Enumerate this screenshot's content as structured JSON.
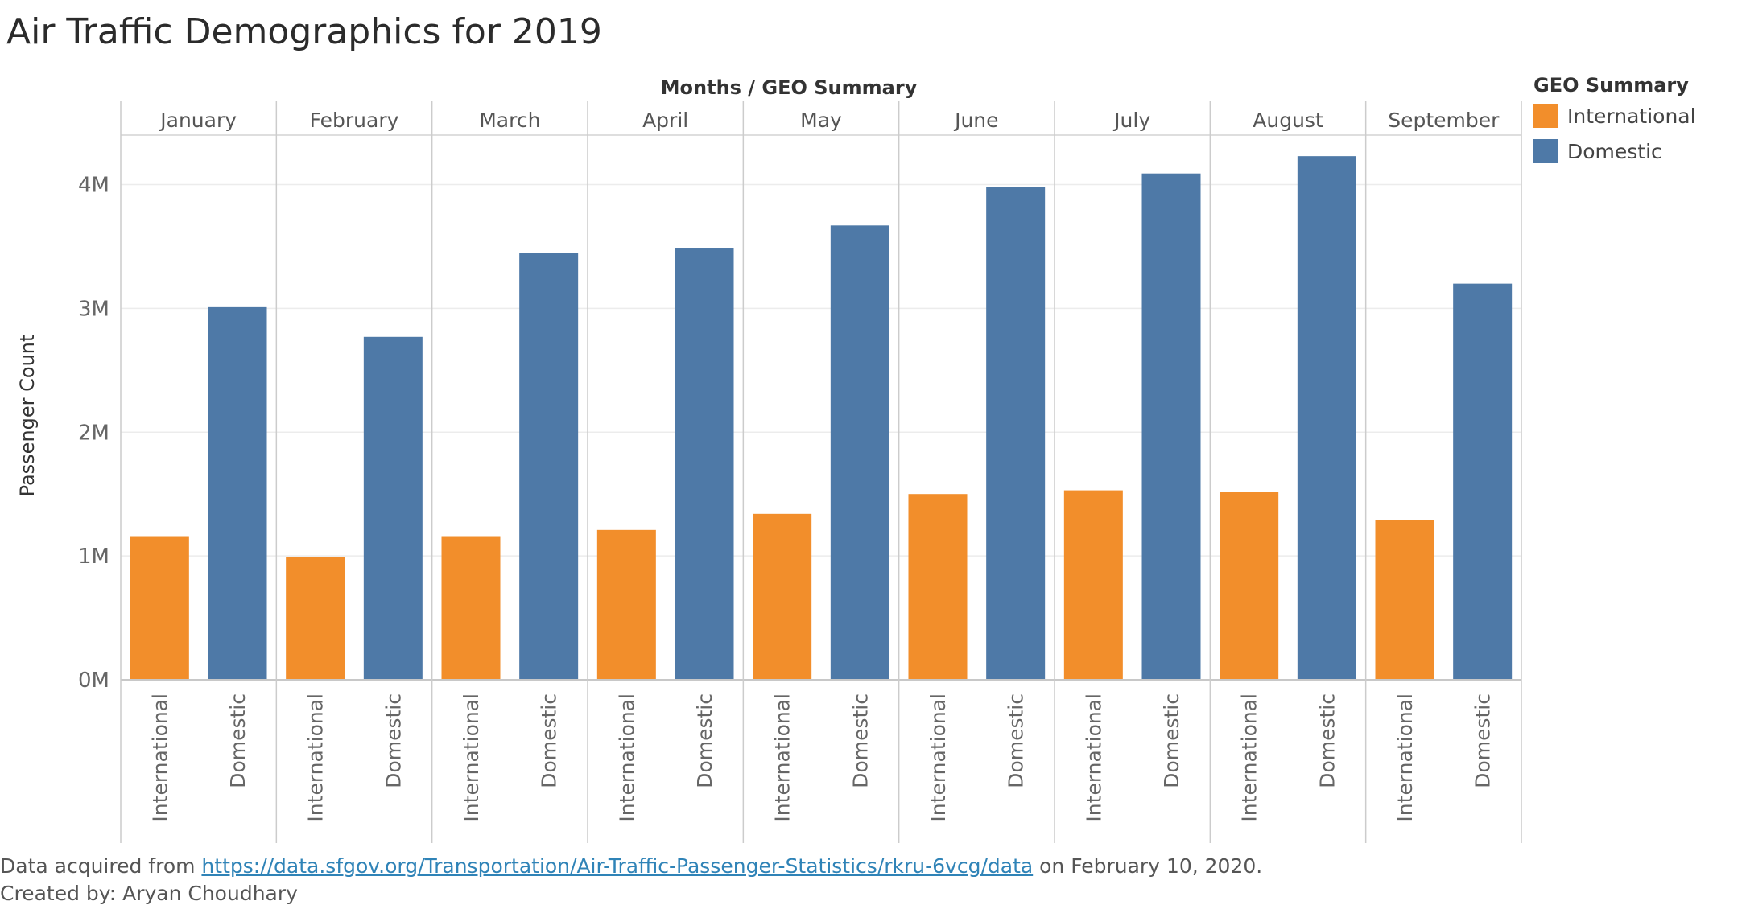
{
  "title": "Air Traffic Demographics for 2019",
  "legend": {
    "title": "GEO Summary",
    "items": [
      {
        "label": "International",
        "color": "#f28e2b"
      },
      {
        "label": "Domestic",
        "color": "#4e79a7"
      }
    ]
  },
  "footer": {
    "prefix": "Data acquired from ",
    "link": "https://data.sfgov.org/Transportation/Air-Traffic-Passenger-Statistics/rkru-6vcg/data",
    "suffix": " on February 10, 2020.",
    "credit": "Created by: Aryan Choudhary"
  },
  "chart_data": {
    "type": "bar",
    "title": "Air Traffic Demographics for 2019",
    "column_header": "Months  /  GEO Summary",
    "ylabel": "Passenger Count",
    "ylim": [
      0,
      4400000
    ],
    "yticks": [
      0,
      1000000,
      2000000,
      3000000,
      4000000
    ],
    "ytick_labels": [
      "0M",
      "1M",
      "2M",
      "3M",
      "4M"
    ],
    "grid": true,
    "legend_position": "top-right",
    "subcategories": [
      "International",
      "Domestic"
    ],
    "categories": [
      "January",
      "February",
      "March",
      "April",
      "May",
      "June",
      "July",
      "August",
      "September"
    ],
    "series": [
      {
        "name": "International",
        "color": "#f28e2b",
        "values": [
          1160000,
          990000,
          1160000,
          1210000,
          1340000,
          1500000,
          1530000,
          1520000,
          1290000
        ]
      },
      {
        "name": "Domestic",
        "color": "#4e79a7",
        "values": [
          3010000,
          2770000,
          3450000,
          3490000,
          3670000,
          3980000,
          4090000,
          4230000,
          3200000
        ]
      }
    ]
  }
}
